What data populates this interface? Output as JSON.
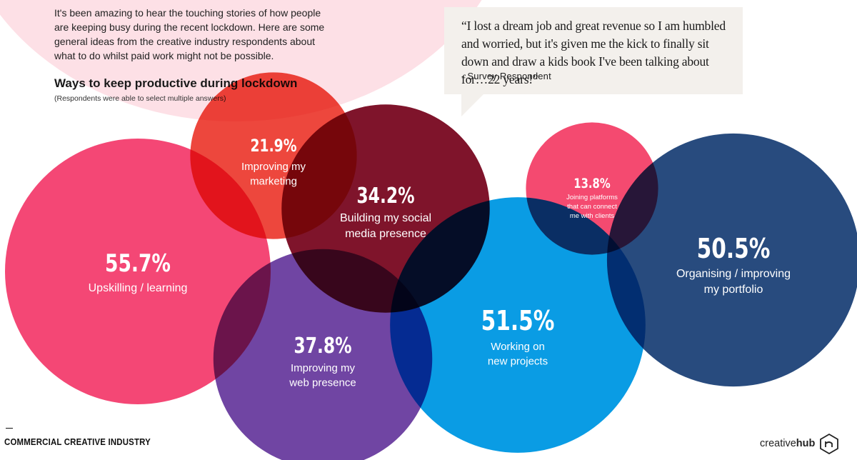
{
  "intro": {
    "paragraph": "It's been amazing to hear the touching stories of how people are keeping busy during the recent lockdown. Here are some general ideas from the creative industry respondents about what to do whilst paid work might not be possible."
  },
  "quote": {
    "text": "“I lost a dream job and great revenue so I am humbled and worried, but it's given me the kick to finally sit down and draw a kids book I've been talking about for…22 years!”",
    "attribution": "- Survey Respondent"
  },
  "footer": {
    "left": "COMMERCIAL CREATIVE INDUSTRY",
    "brand_regular": "creative",
    "brand_bold": "hub",
    "brand_icon": "creativehub-logo-icon"
  },
  "colors": {
    "upskilling": "#f43f6f",
    "marketing": "#ec3f35",
    "social": "#7a0a22",
    "web": "#6a3d9f",
    "projects": "#0098e3",
    "platforms": "#f4436a",
    "portfolio": "#1f4479"
  },
  "chart_data": {
    "type": "bubble",
    "title": "Ways to keep productive during lockdown",
    "subtitle": "(Respondents were able to select multiple answers)",
    "unit": "%",
    "items": [
      {
        "key": "upskilling",
        "value": 55.7,
        "label": "55.7%",
        "lines": [
          "Upskilling / learning"
        ]
      },
      {
        "key": "marketing",
        "value": 21.9,
        "label": "21.9%",
        "lines": [
          "Improving my",
          "marketing"
        ]
      },
      {
        "key": "social",
        "value": 34.2,
        "label": "34.2%",
        "lines": [
          "Building my social",
          "media presence"
        ]
      },
      {
        "key": "web",
        "value": 37.8,
        "label": "37.8%",
        "lines": [
          "Improving my",
          "web presence"
        ]
      },
      {
        "key": "projects",
        "value": 51.5,
        "label": "51.5%",
        "lines": [
          "Working on",
          "new projects"
        ]
      },
      {
        "key": "platforms",
        "value": 13.8,
        "label": "13.8%",
        "lines": [
          "Joining platforms",
          "that can connect",
          "me with clients"
        ]
      },
      {
        "key": "portfolio",
        "value": 50.5,
        "label": "50.5%",
        "lines": [
          "Organising / improving",
          "my portfolio"
        ]
      }
    ]
  }
}
